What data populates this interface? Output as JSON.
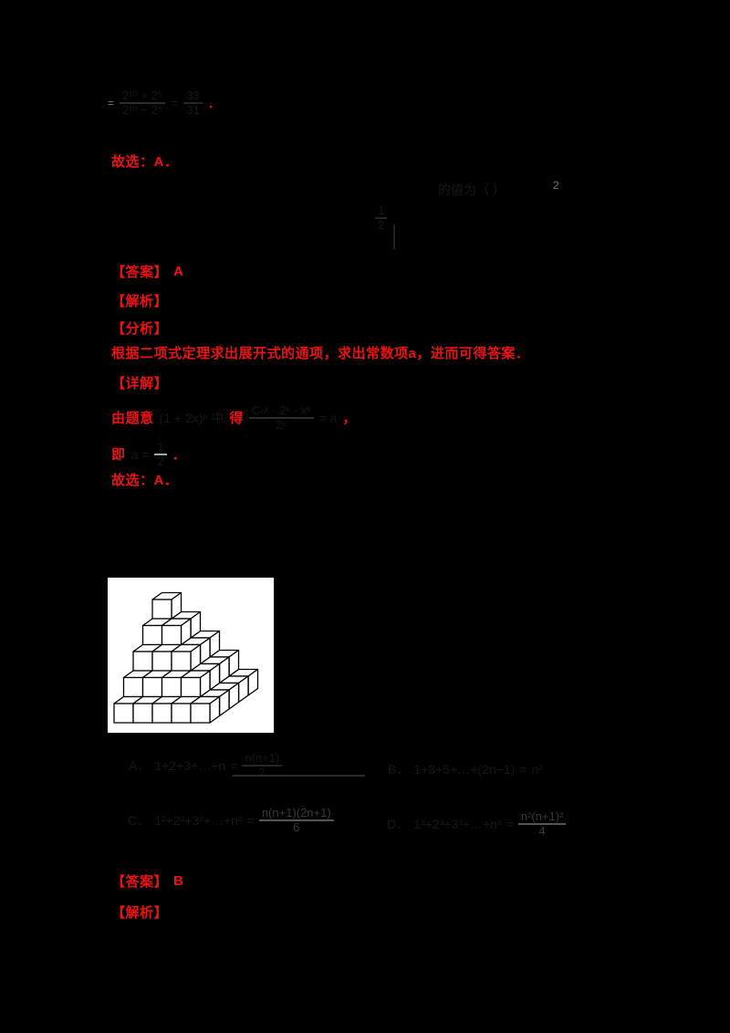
{
  "colors": {
    "red": "#ed1212",
    "page_bg": "#000000",
    "figure_bg": "#ffffff",
    "figure_line": "#000000"
  },
  "prev_solution": {
    "eq_lead": "=",
    "frac1_num": "2¹⁰ + 2⁵",
    "frac1_den": "2¹⁰ − 2⁵",
    "eq_mid": "=",
    "frac2_num": "33",
    "frac2_den": "31",
    "period": "．",
    "choose_text": "故选：A．"
  },
  "question": {
    "stem_tail": "的值为（  ）",
    "hint_sup": "2",
    "frac_num": "1",
    "frac_den": "2"
  },
  "solution1": {
    "answer_label": "【答案】",
    "answer_value": "A",
    "jiexi_label": "【解析】",
    "fenxi_label": "【分析】",
    "fenxi_text": "根据二项式定理求出展开式的通项，求出常数项a，进而可得答案．",
    "xiangjie_label": "【详解】",
    "detail_lead": "由题意",
    "detail_formula1": "(1 + 2x)ⁿ 中",
    "detail_mid": "得",
    "detail_frac_num": "Cₙᵏ · 2ᵏ · xᵏ",
    "detail_frac_den": "2ⁿ",
    "detail_tail": "= a",
    "detail_comma": "，",
    "conclude_lead": "即",
    "conclude_pre": "a =",
    "conclude_frac_num": "1",
    "conclude_frac_den": "2",
    "conclude_period": "．",
    "choose_text": "故选：A．"
  },
  "figure": {
    "type": "unit-cube step pyramid",
    "levels": 5,
    "layer_sizes": [
      25,
      16,
      9,
      4,
      1
    ]
  },
  "options": {
    "a_label": "A．",
    "a_lhs": "1+2+3+…+n",
    "a_eq": "=",
    "a_frac_num": "n(n+1)",
    "a_frac_den": "2",
    "b_label": "B．",
    "b_lhs": "1+3+5+…+(2n−1)",
    "b_eq": "=",
    "b_rhs": "n²",
    "c_label": "C．",
    "c_lhs": "1²+2²+3²+…+n²",
    "c_eq": "=",
    "c_frac_num": "n(n+1)(2n+1)",
    "c_frac_den": "6",
    "d_label": "D．",
    "d_lhs": "1³+2³+3³+…+n³",
    "d_eq": "=",
    "d_frac_num": "n²(n+1)²",
    "d_frac_den": "4"
  },
  "solution2": {
    "answer_label": "【答案】",
    "answer_value": "B",
    "jiexi_label": "【解析】"
  }
}
